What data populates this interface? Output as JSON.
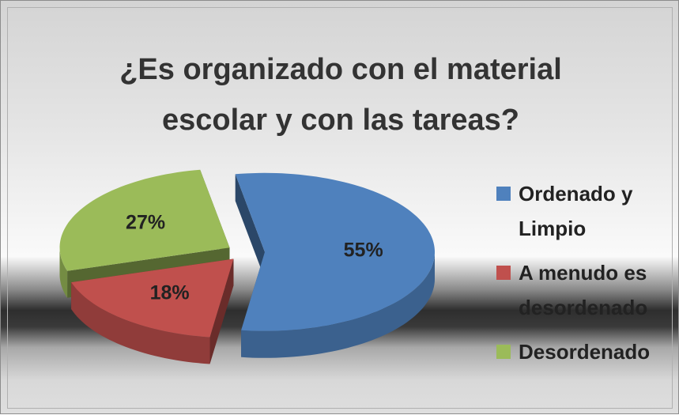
{
  "chart_data": {
    "type": "pie3d",
    "title": "¿Es organizado con el material escolar y con las tareas?",
    "categories": [
      "Ordenado y Limpio",
      "A menudo es desordenado",
      "Desordenado"
    ],
    "values": [
      55,
      18,
      27
    ],
    "value_labels": [
      "55%",
      "18%",
      "27%"
    ],
    "colors": [
      "#4f81bd",
      "#c0504d",
      "#9bbb59"
    ],
    "legend": "right"
  }
}
